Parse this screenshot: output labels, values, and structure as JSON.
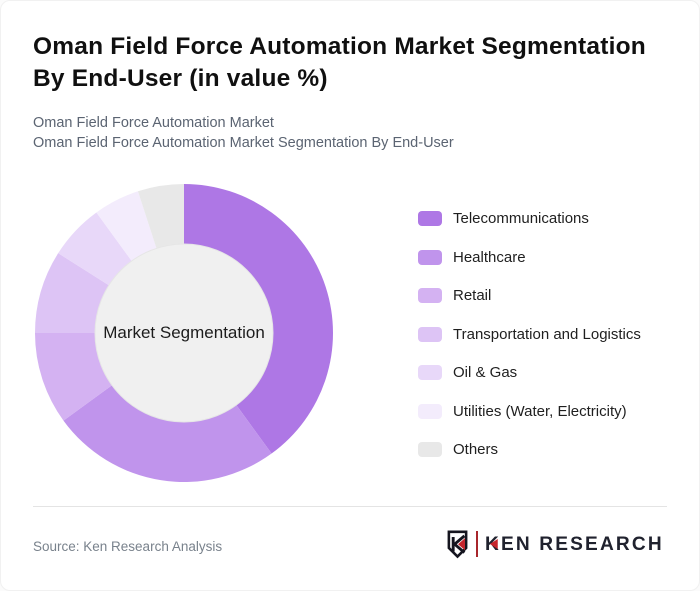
{
  "title": "Oman Field Force Automation Market Segmentation By End-User (in value %)",
  "subtitle_lines": [
    "Oman Field Force Automation Market",
    "Oman Field Force Automation Market Segmentation By End-User"
  ],
  "chart_data": {
    "type": "pie",
    "subtype": "donut",
    "title": "Oman Field Force Automation Market Segmentation By End-User (in value %)",
    "center_label": "Market Segmentation",
    "categories": [
      "Telecommunications",
      "Healthcare",
      "Retail",
      "Transportation and Logistics",
      "Oil & Gas",
      "Utilities (Water, Electricity)",
      "Others"
    ],
    "values": [
      40,
      25,
      10,
      9,
      6,
      5,
      5
    ],
    "unit": "%",
    "colors": [
      "#ae77e5",
      "#c094ec",
      "#d4b2f2",
      "#ddc4f5",
      "#e8d8f9",
      "#f3ecfc",
      "#e8e8e8"
    ],
    "hole_color": "#f0f0f0",
    "hole_stroke": "#e6e6e6",
    "start_angle_deg": 0,
    "direction": "clockwise",
    "outer_radius": 149,
    "inner_radius": 89,
    "legend_position": "right"
  },
  "footer": {
    "source_label": "Source: Ken Research Analysis",
    "brand": {
      "name": "KEN RESEARCH",
      "name_first_letter": "K",
      "name_rest": "EN RESEARCH",
      "emblem_letter": "K",
      "accent_color": "#c5252c",
      "text_color": "#20222e"
    }
  }
}
